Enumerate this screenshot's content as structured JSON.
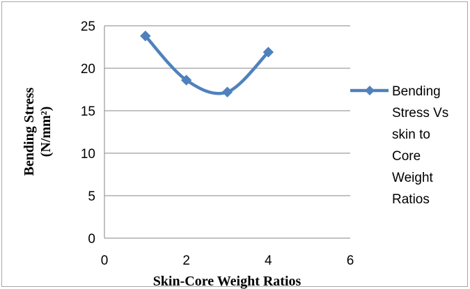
{
  "chart_data": {
    "type": "scatter",
    "smooth": true,
    "marker": "diamond",
    "xlabel": "Skin-Core Weight Ratios",
    "ylabel_lines": [
      "Bending Stress",
      "(N/mm²)"
    ],
    "xlim": [
      0,
      6
    ],
    "ylim": [
      0,
      25
    ],
    "xticks": [
      0,
      2,
      4,
      6
    ],
    "yticks": [
      0,
      5,
      10,
      15,
      20,
      25
    ],
    "grid": "horizontal",
    "legend_position": "right",
    "series": [
      {
        "name_lines": [
          "Bending",
          "Stress Vs",
          "skin to",
          "Core",
          "Weight",
          "Ratios"
        ],
        "color": "#4f81bd",
        "x": [
          1,
          2,
          3,
          4
        ],
        "y": [
          23.8,
          18.6,
          17.2,
          21.9
        ]
      }
    ]
  },
  "colors": {
    "gridline": "#868686",
    "series": "#4f81bd"
  }
}
